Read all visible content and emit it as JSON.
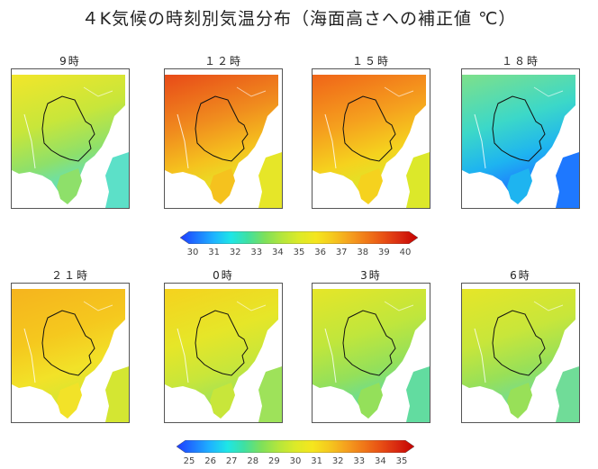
{
  "title": "４K気候の時刻別気温分布（海面高さへの補正値 ℃）",
  "rows": [
    {
      "panels": [
        {
          "label": "9時",
          "palette": "m9"
        },
        {
          "label": "１２時",
          "palette": "m12"
        },
        {
          "label": "１５時",
          "palette": "m15"
        },
        {
          "label": "１８時",
          "palette": "m18"
        }
      ],
      "colorbar": {
        "ticks": [
          "30",
          "31",
          "32",
          "33",
          "34",
          "35",
          "36",
          "37",
          "38",
          "39",
          "40"
        ]
      }
    },
    {
      "panels": [
        {
          "label": "２１時",
          "palette": "m21"
        },
        {
          "label": "0時",
          "palette": "m0"
        },
        {
          "label": "3時",
          "palette": "m3"
        },
        {
          "label": "6時",
          "palette": "m6"
        }
      ],
      "colorbar": {
        "ticks": [
          "25",
          "26",
          "27",
          "28",
          "29",
          "30",
          "31",
          "32",
          "33",
          "34",
          "35"
        ]
      }
    }
  ],
  "colorbar_colors": [
    "#1f3cff",
    "#1e78ff",
    "#1eb4ff",
    "#1ee6e6",
    "#40e0a0",
    "#7ee05a",
    "#b4e63c",
    "#dcea28",
    "#f5e61e",
    "#f5c81e",
    "#f5a01e",
    "#f07818",
    "#e85014",
    "#d82810",
    "#c40000"
  ]
}
